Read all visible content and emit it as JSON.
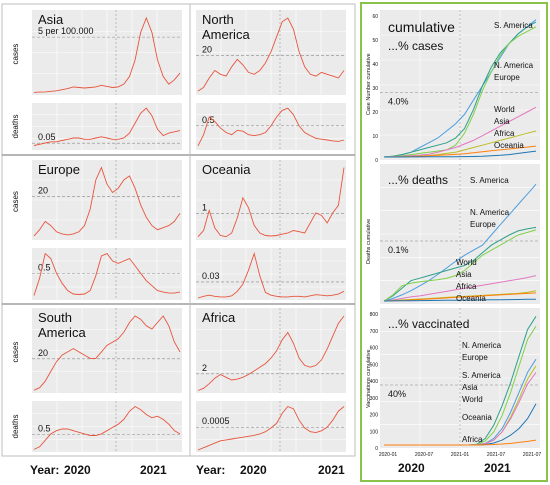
{
  "regions": [
    {
      "name": "Asia",
      "row_labels": [
        "cases",
        "deaths"
      ],
      "scale": [
        "5 per 100.000",
        "0.05"
      ],
      "cases": [
        0.05,
        0.08,
        0.1,
        0.15,
        0.2,
        0.3,
        0.4,
        0.55,
        0.5,
        0.45,
        0.5,
        0.55,
        0.7,
        0.6,
        0.5,
        0.55,
        0.8,
        1.5,
        3.0,
        5.5,
        6.8,
        5.5,
        3.0,
        1.5,
        0.8,
        1.2,
        1.8
      ],
      "deaths": [
        0.02,
        0.03,
        0.04,
        0.05,
        0.05,
        0.06,
        0.07,
        0.08,
        0.08,
        0.07,
        0.07,
        0.08,
        0.09,
        0.08,
        0.07,
        0.07,
        0.08,
        0.12,
        0.2,
        0.28,
        0.32,
        0.26,
        0.15,
        0.1,
        0.12,
        0.13,
        0.14
      ]
    },
    {
      "name": "North America",
      "row_labels": [
        "",
        ""
      ],
      "scale": [
        "20",
        "0.5"
      ],
      "cases": [
        1,
        3,
        8,
        12,
        10,
        9,
        14,
        18,
        15,
        11,
        10,
        12,
        16,
        22,
        30,
        38,
        40,
        34,
        22,
        14,
        10,
        9,
        11,
        10,
        9,
        8,
        12
      ],
      "deaths": [
        0.05,
        0.3,
        0.7,
        0.6,
        0.45,
        0.35,
        0.3,
        0.4,
        0.38,
        0.3,
        0.28,
        0.3,
        0.35,
        0.5,
        0.7,
        0.85,
        0.9,
        0.75,
        0.5,
        0.35,
        0.28,
        0.22,
        0.2,
        0.18,
        0.16,
        0.15,
        0.18
      ]
    },
    {
      "name": "Europe",
      "row_labels": [
        "cases",
        ""
      ],
      "scale": [
        "20",
        "0.5"
      ],
      "cases": [
        1,
        4,
        8,
        6,
        3,
        2,
        1.5,
        2,
        3,
        6,
        14,
        28,
        34,
        26,
        22,
        24,
        28,
        30,
        24,
        16,
        10,
        6,
        4,
        5,
        6,
        8,
        12
      ],
      "deaths": [
        0.05,
        0.4,
        0.9,
        0.8,
        0.5,
        0.3,
        0.15,
        0.08,
        0.07,
        0.08,
        0.15,
        0.45,
        0.85,
        0.9,
        0.75,
        0.7,
        0.75,
        0.8,
        0.65,
        0.5,
        0.35,
        0.25,
        0.15,
        0.12,
        0.1,
        0.1,
        0.12
      ]
    },
    {
      "name": "Oceania",
      "row_labels": [
        "",
        ""
      ],
      "scale": [
        "1",
        "0.03"
      ],
      "cases": [
        0.05,
        0.3,
        1.1,
        0.4,
        0.1,
        0.05,
        0.2,
        0.8,
        1.6,
        1.2,
        0.5,
        0.2,
        0.1,
        0.08,
        0.1,
        0.15,
        0.2,
        0.3,
        0.25,
        0.2,
        0.6,
        1.0,
        0.9,
        0.6,
        1.0,
        1.3,
        2.8
      ],
      "deaths": [
        0.0,
        0.003,
        0.005,
        0.003,
        0.002,
        0.002,
        0.004,
        0.012,
        0.025,
        0.05,
        0.08,
        0.04,
        0.01,
        0.005,
        0.003,
        0.002,
        0.002,
        0.003,
        0.003,
        0.002,
        0.004,
        0.006,
        0.005,
        0.004,
        0.005,
        0.007,
        0.012
      ]
    },
    {
      "name": "South America",
      "row_labels": [
        "cases",
        "deaths"
      ],
      "scale": [
        "20",
        "0.5"
      ],
      "cases": [
        0.5,
        2,
        6,
        12,
        18,
        22,
        24,
        26,
        24,
        22,
        20,
        20,
        24,
        28,
        30,
        32,
        36,
        42,
        46,
        44,
        40,
        38,
        42,
        46,
        40,
        30,
        24
      ],
      "deaths": [
        0.02,
        0.1,
        0.3,
        0.5,
        0.6,
        0.65,
        0.65,
        0.6,
        0.55,
        0.5,
        0.45,
        0.45,
        0.5,
        0.6,
        0.7,
        0.8,
        0.95,
        1.2,
        1.35,
        1.25,
        1.1,
        1.0,
        1.05,
        0.95,
        0.8,
        0.6,
        0.5
      ]
    },
    {
      "name": "Africa",
      "row_labels": [
        "",
        ""
      ],
      "scale": [
        "2",
        "0.0005"
      ],
      "cases": [
        0.05,
        0.3,
        0.8,
        1.4,
        1.8,
        1.5,
        1.2,
        1.3,
        1.5,
        1.8,
        2.2,
        2.6,
        3.0,
        3.6,
        4.4,
        5.6,
        6.4,
        5.2,
        3.6,
        2.8,
        2.6,
        2.8,
        3.4,
        4.6,
        6.0,
        7.4,
        8.2
      ],
      "deaths": [
        0.0,
        5e-05,
        0.0001,
        0.00015,
        0.0002,
        0.00022,
        0.00024,
        0.00026,
        0.00028,
        0.0003,
        0.00032,
        0.00035,
        0.0004,
        0.00048,
        0.00058,
        0.0008,
        0.00095,
        0.0009,
        0.00065,
        0.00048,
        0.0004,
        0.00038,
        0.00042,
        0.0005,
        0.00065,
        0.00085,
        0.00095
      ]
    }
  ],
  "year_axis": {
    "label": "Year:",
    "y2020": "2020",
    "y2021": "2021"
  },
  "right_panel": {
    "cumulative": {
      "title_line1": "cumulative",
      "title_line2": "...% cases",
      "ref_label": "4.0%",
      "ylabel": "Case Number cumulative",
      "yticks": [
        "0",
        "10",
        "20",
        "30",
        "40",
        "50",
        "60"
      ],
      "ylim": [
        0,
        60
      ],
      "labels": [
        "S. America",
        "N. America",
        "Europe",
        "World",
        "Asia",
        "Africa",
        "Oceania"
      ],
      "series": [
        {
          "name": "S. America",
          "color": "#4d9de0",
          "values": [
            0,
            0.3,
            1,
            2,
            4,
            6,
            8,
            11,
            14,
            18,
            24,
            30,
            36,
            42,
            48,
            52,
            55,
            58
          ]
        },
        {
          "name": "N. America",
          "color": "#2ca089",
          "values": [
            0,
            0.3,
            1,
            2,
            3,
            4,
            5,
            6,
            8,
            12,
            20,
            30,
            38,
            44,
            48,
            52,
            55,
            57
          ]
        },
        {
          "name": "Europe",
          "color": "#7fd14a",
          "values": [
            0,
            0.2,
            0.5,
            1,
            1.5,
            2,
            2.5,
            3,
            5,
            10,
            18,
            28,
            36,
            43,
            48,
            51,
            53,
            55
          ]
        },
        {
          "name": "World",
          "color": "#e377c2",
          "values": [
            0,
            0.1,
            0.3,
            0.5,
            0.8,
            1.2,
            2,
            3,
            4,
            5.5,
            7,
            9,
            11,
            13,
            15,
            17,
            19,
            21
          ]
        },
        {
          "name": "Asia",
          "color": "#bcbd22",
          "values": [
            0,
            0.05,
            0.1,
            0.2,
            0.4,
            0.6,
            1,
            1.5,
            2,
            3,
            4,
            5,
            6,
            7,
            8,
            9,
            10,
            11
          ]
        },
        {
          "name": "Africa",
          "color": "#ff7f0e",
          "values": [
            0,
            0.05,
            0.1,
            0.2,
            0.3,
            0.5,
            0.7,
            0.9,
            1.1,
            1.4,
            1.8,
            2.2,
            2.6,
            3,
            3.4,
            3.8,
            4.2,
            4.6
          ]
        },
        {
          "name": "Oceania",
          "color": "#1f77b4",
          "values": [
            0,
            0.01,
            0.02,
            0.03,
            0.05,
            0.07,
            0.09,
            0.1,
            0.12,
            0.15,
            0.2,
            0.3,
            0.5,
            0.7,
            1,
            1.5,
            2,
            2.5
          ]
        }
      ]
    },
    "deaths": {
      "title": "...% deaths",
      "ref_label": "0.1%",
      "ylabel": "Deaths cumulative",
      "yticks": [],
      "ylim": [
        0,
        0.26
      ],
      "labels": [
        "S. America",
        "N. America",
        "Europe",
        "World",
        "Asia",
        "Africa",
        "Oceania"
      ],
      "series": [
        {
          "name": "S. America",
          "color": "#4d9de0",
          "values": [
            0,
            0.005,
            0.012,
            0.02,
            0.03,
            0.04,
            0.052,
            0.065,
            0.078,
            0.09,
            0.1,
            0.11,
            0.13,
            0.15,
            0.17,
            0.19,
            0.21,
            0.23
          ]
        },
        {
          "name": "N. America",
          "color": "#2ca089",
          "values": [
            0,
            0.01,
            0.025,
            0.04,
            0.045,
            0.05,
            0.055,
            0.06,
            0.065,
            0.07,
            0.08,
            0.095,
            0.11,
            0.12,
            0.13,
            0.138,
            0.142,
            0.145
          ]
        },
        {
          "name": "Europe",
          "color": "#7fd14a",
          "values": [
            0,
            0.012,
            0.03,
            0.035,
            0.038,
            0.04,
            0.042,
            0.045,
            0.05,
            0.06,
            0.075,
            0.09,
            0.1,
            0.11,
            0.12,
            0.13,
            0.135,
            0.14
          ]
        },
        {
          "name": "World",
          "color": "#e377c2",
          "values": [
            0,
            0.002,
            0.005,
            0.008,
            0.01,
            0.013,
            0.016,
            0.019,
            0.022,
            0.025,
            0.028,
            0.031,
            0.034,
            0.037,
            0.04,
            0.043,
            0.046,
            0.05
          ]
        },
        {
          "name": "Asia",
          "color": "#bcbd22",
          "values": [
            0,
            0.001,
            0.002,
            0.003,
            0.004,
            0.005,
            0.006,
            0.007,
            0.008,
            0.009,
            0.01,
            0.011,
            0.012,
            0.013,
            0.014,
            0.015,
            0.017,
            0.02
          ]
        },
        {
          "name": "Africa",
          "color": "#ff7f0e",
          "values": [
            0,
            0.0005,
            0.001,
            0.002,
            0.003,
            0.004,
            0.005,
            0.006,
            0.007,
            0.008,
            0.009,
            0.01,
            0.011,
            0.012,
            0.013,
            0.014,
            0.015,
            0.016
          ]
        },
        {
          "name": "Oceania",
          "color": "#1f77b4",
          "values": [
            0,
            0.0002,
            0.0004,
            0.0006,
            0.0008,
            0.001,
            0.0012,
            0.0014,
            0.0016,
            0.0018,
            0.002,
            0.0022,
            0.0024,
            0.0026,
            0.0028,
            0.003,
            0.0033,
            0.0035
          ]
        }
      ]
    },
    "vaccinated": {
      "title": "...% vaccinated",
      "ref_label": "40%",
      "ylabel": "Vaccinations cumulative",
      "yticks": [
        "0",
        "100",
        "200",
        "300",
        "400",
        "500",
        "600",
        "700",
        "800"
      ],
      "ylim": [
        0,
        800
      ],
      "xticks": [
        "2020-01",
        "2020-07",
        "2021-01",
        "2021-07",
        "2021-07"
      ],
      "labels": [
        "N. America",
        "Europe",
        "S. America",
        "Asia",
        "World",
        "Oceania",
        "Africa"
      ],
      "series": [
        {
          "name": "N. America",
          "color": "#2ca089",
          "values": [
            0,
            0,
            0,
            0,
            0,
            0,
            0,
            0,
            0,
            0,
            0,
            5,
            40,
            120,
            240,
            380,
            540,
            700,
            780
          ]
        },
        {
          "name": "Europe",
          "color": "#7fd14a",
          "values": [
            0,
            0,
            0,
            0,
            0,
            0,
            0,
            0,
            0,
            0,
            0,
            3,
            25,
            80,
            180,
            320,
            480,
            640,
            720
          ]
        },
        {
          "name": "S. America",
          "color": "#4d9de0",
          "values": [
            0,
            0,
            0,
            0,
            0,
            0,
            0,
            0,
            0,
            0,
            0,
            1,
            10,
            40,
            100,
            200,
            320,
            440,
            520
          ]
        },
        {
          "name": "Asia",
          "color": "#bcbd22",
          "values": [
            0,
            0,
            0,
            0,
            0,
            0,
            0,
            0,
            0,
            0,
            0,
            1,
            8,
            30,
            80,
            170,
            280,
            400,
            480
          ]
        },
        {
          "name": "World",
          "color": "#e377c2",
          "values": [
            0,
            0,
            0,
            0,
            0,
            0,
            0,
            0,
            0,
            0,
            0,
            1,
            8,
            30,
            80,
            160,
            260,
            370,
            440
          ]
        },
        {
          "name": "Oceania",
          "color": "#1f77b4",
          "values": [
            0,
            0,
            0,
            0,
            0,
            0,
            0,
            0,
            0,
            0,
            0,
            0,
            3,
            12,
            30,
            60,
            100,
            160,
            250
          ]
        },
        {
          "name": "Africa",
          "color": "#ff7f0e",
          "values": [
            0,
            0,
            0,
            0,
            0,
            0,
            0,
            0,
            0,
            0,
            0,
            0,
            1,
            3,
            6,
            10,
            16,
            22,
            30
          ]
        }
      ]
    },
    "bottom_years": {
      "y2020": "2020",
      "y2021": "2021"
    }
  },
  "chart_data": [
    {
      "type": "line",
      "title": "Asia",
      "series": [
        {
          "name": "cases"
        },
        {
          "name": "deaths"
        }
      ]
    },
    {
      "type": "line",
      "title": "North America",
      "series": [
        {
          "name": "cases"
        },
        {
          "name": "deaths"
        }
      ]
    },
    {
      "type": "line",
      "title": "Europe",
      "series": [
        {
          "name": "cases"
        },
        {
          "name": "deaths"
        }
      ]
    },
    {
      "type": "line",
      "title": "Oceania",
      "series": [
        {
          "name": "cases"
        },
        {
          "name": "deaths"
        }
      ]
    },
    {
      "type": "line",
      "title": "South America",
      "series": [
        {
          "name": "cases"
        },
        {
          "name": "deaths"
        }
      ]
    },
    {
      "type": "line",
      "title": "Africa",
      "series": [
        {
          "name": "cases"
        },
        {
          "name": "deaths"
        }
      ]
    },
    {
      "type": "line",
      "title": "cumulative ...% cases"
    },
    {
      "type": "line",
      "title": "...% deaths"
    },
    {
      "type": "line",
      "title": "...% vaccinated"
    }
  ]
}
